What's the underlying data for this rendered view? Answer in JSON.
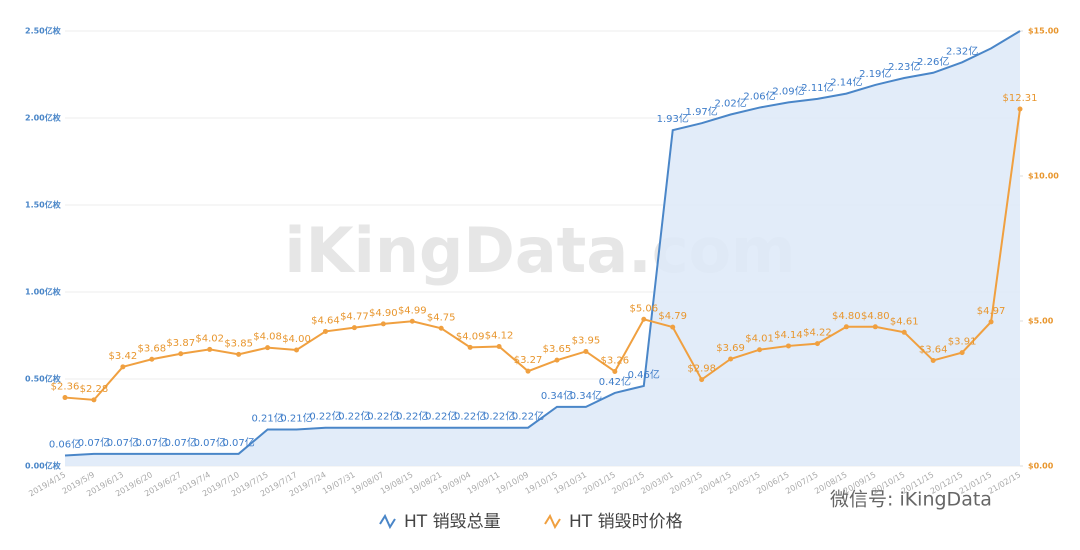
{
  "chart_data": {
    "type": "line",
    "categories": [
      "2019/4/15",
      "2019/5/9",
      "2019/6/13",
      "2019/6/20",
      "2019/6/27",
      "2019/7/4",
      "2019/7/10",
      "2019/7/15",
      "2019/7/17",
      "2019/7/24",
      "19/07/31",
      "19/08/07",
      "19/08/15",
      "19/08/21",
      "19/09/04",
      "19/09/11",
      "19/10/09",
      "19/10/15",
      "19/10/31",
      "20/01/15",
      "20/02/15",
      "20/03/01",
      "20/03/15",
      "20/04/15",
      "20/05/15",
      "20/06/15",
      "20/07/15",
      "20/08/15",
      "20/09/15",
      "20/10/15",
      "20/11/15",
      "20/12/15",
      "21/01/15",
      "21/02/15"
    ],
    "series": [
      {
        "name": "HT 销毁总量",
        "color": "#4a86c8",
        "area": true,
        "values": [
          0.06,
          0.07,
          0.07,
          0.07,
          0.07,
          0.07,
          0.07,
          0.21,
          0.21,
          0.22,
          0.22,
          0.22,
          0.22,
          0.22,
          0.22,
          0.22,
          0.22,
          0.34,
          0.34,
          0.42,
          0.46,
          1.93,
          1.97,
          2.02,
          2.06,
          2.09,
          2.11,
          2.14,
          2.19,
          2.23,
          2.26,
          2.32,
          2.4,
          2.5
        ],
        "value_labels": [
          "0.06亿",
          "0.07亿",
          "0.07亿",
          "0.07亿",
          "0.07亿",
          "0.07亿",
          "0.07亿",
          "0.21亿",
          "0.21亿",
          "0.22亿",
          "0.22亿",
          "0.22亿",
          "0.22亿",
          "0.22亿",
          "0.22亿",
          "0.22亿",
          "0.22亿",
          "0.34亿",
          "0.34亿",
          "0.42亿",
          "0.46亿",
          "1.93亿",
          "1.97亿",
          "2.02亿",
          "2.06亿",
          "2.09亿",
          "2.11亿",
          "2.14亿",
          "2.19亿",
          "2.23亿",
          "2.26亿",
          "2.32亿",
          null,
          null
        ]
      },
      {
        "name": "HT 销毁时价格",
        "color": "#f0a040",
        "axis": "y2",
        "values": [
          2.36,
          2.28,
          3.42,
          3.68,
          3.87,
          4.02,
          3.85,
          4.08,
          4.0,
          4.64,
          4.77,
          4.9,
          4.99,
          4.75,
          4.09,
          4.12,
          3.27,
          3.65,
          3.95,
          3.26,
          5.06,
          4.79,
          2.98,
          3.69,
          4.01,
          4.14,
          4.22,
          4.8,
          4.8,
          4.61,
          3.64,
          3.91,
          4.97,
          12.31
        ],
        "value_labels": [
          "$2.36",
          "$2.28",
          "$3.42",
          "$3.68",
          "$3.87",
          "$4.02",
          "$3.85",
          "$4.08",
          "$4.00",
          "$4.64",
          "$4.77",
          "$4.90",
          "$4.99",
          "$4.75",
          "$4.09",
          "$4.12",
          "$3.27",
          "$3.65",
          "$3.95",
          "$3.26",
          "$5.06",
          "$4.79",
          "$2.98",
          "$3.69",
          "$4.01",
          "$4.14",
          "$4.22",
          "$4.80",
          "$4.80",
          "$4.61",
          "$3.64",
          "$3.91",
          "$4.97",
          "$12.31"
        ]
      }
    ],
    "ylim": [
      0,
      2.5
    ],
    "yticks": [
      {
        "value": 0,
        "label": "0.00亿枚"
      },
      {
        "value": 0.5,
        "label": "0.50亿枚"
      },
      {
        "value": 1,
        "label": "1.00亿枚"
      },
      {
        "value": 1.5,
        "label": "1.50亿枚"
      },
      {
        "value": 2,
        "label": "2.00亿枚"
      },
      {
        "value": 2.5,
        "label": "2.50亿枚"
      }
    ],
    "y2lim": [
      0,
      15
    ],
    "y2ticks": [
      {
        "value": 0,
        "label": "$0.00"
      },
      {
        "value": 5,
        "label": "$5.00"
      },
      {
        "value": 10,
        "label": "$10.00"
      },
      {
        "value": 15,
        "label": "$15.00"
      }
    ],
    "grid": true,
    "watermark": "iKingData.com",
    "footer_watermark": "微信号: iKingData"
  }
}
